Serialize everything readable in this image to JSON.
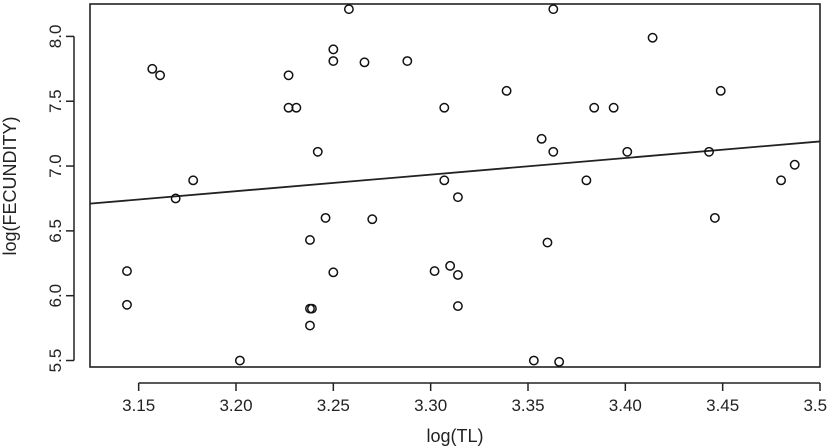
{
  "chart_data": {
    "type": "scatter",
    "xlabel": "log(TL)",
    "ylabel": "log(FECUNDITY)",
    "xlim": [
      3.125,
      3.5
    ],
    "ylim": [
      5.45,
      8.25
    ],
    "x_ticks": [
      "3.15",
      "3.20",
      "3.25",
      "3.30",
      "3.35",
      "3.40",
      "3.45",
      "3.50"
    ],
    "y_ticks": [
      "5.5",
      "6.0",
      "6.5",
      "7.0",
      "7.5",
      "8.0"
    ],
    "grid": false,
    "points": [
      {
        "x": 3.144,
        "y": 6.19
      },
      {
        "x": 3.144,
        "y": 5.93
      },
      {
        "x": 3.157,
        "y": 7.75
      },
      {
        "x": 3.161,
        "y": 7.7
      },
      {
        "x": 3.169,
        "y": 6.75
      },
      {
        "x": 3.178,
        "y": 6.89
      },
      {
        "x": 3.202,
        "y": 5.5
      },
      {
        "x": 3.227,
        "y": 7.7
      },
      {
        "x": 3.227,
        "y": 7.45
      },
      {
        "x": 3.231,
        "y": 7.45
      },
      {
        "x": 3.238,
        "y": 6.43
      },
      {
        "x": 3.238,
        "y": 5.9
      },
      {
        "x": 3.239,
        "y": 5.9
      },
      {
        "x": 3.238,
        "y": 5.77
      },
      {
        "x": 3.242,
        "y": 7.11
      },
      {
        "x": 3.246,
        "y": 6.6
      },
      {
        "x": 3.25,
        "y": 7.9
      },
      {
        "x": 3.25,
        "y": 7.81
      },
      {
        "x": 3.25,
        "y": 6.18
      },
      {
        "x": 3.258,
        "y": 8.21
      },
      {
        "x": 3.266,
        "y": 7.8
      },
      {
        "x": 3.27,
        "y": 6.59
      },
      {
        "x": 3.288,
        "y": 7.81
      },
      {
        "x": 3.302,
        "y": 6.19
      },
      {
        "x": 3.307,
        "y": 7.45
      },
      {
        "x": 3.307,
        "y": 6.89
      },
      {
        "x": 3.31,
        "y": 6.23
      },
      {
        "x": 3.314,
        "y": 6.76
      },
      {
        "x": 3.314,
        "y": 6.16
      },
      {
        "x": 3.314,
        "y": 5.92
      },
      {
        "x": 3.339,
        "y": 7.58
      },
      {
        "x": 3.353,
        "y": 5.5
      },
      {
        "x": 3.357,
        "y": 7.21
      },
      {
        "x": 3.36,
        "y": 6.41
      },
      {
        "x": 3.363,
        "y": 8.21
      },
      {
        "x": 3.363,
        "y": 7.11
      },
      {
        "x": 3.366,
        "y": 5.49
      },
      {
        "x": 3.38,
        "y": 6.89
      },
      {
        "x": 3.384,
        "y": 7.45
      },
      {
        "x": 3.394,
        "y": 7.45
      },
      {
        "x": 3.401,
        "y": 7.11
      },
      {
        "x": 3.414,
        "y": 7.99
      },
      {
        "x": 3.443,
        "y": 7.11
      },
      {
        "x": 3.446,
        "y": 6.6
      },
      {
        "x": 3.449,
        "y": 7.58
      },
      {
        "x": 3.48,
        "y": 6.89
      },
      {
        "x": 3.487,
        "y": 7.01
      }
    ],
    "regression_line": {
      "x": [
        3.125,
        3.5
      ],
      "y": [
        6.71,
        7.19
      ]
    }
  }
}
